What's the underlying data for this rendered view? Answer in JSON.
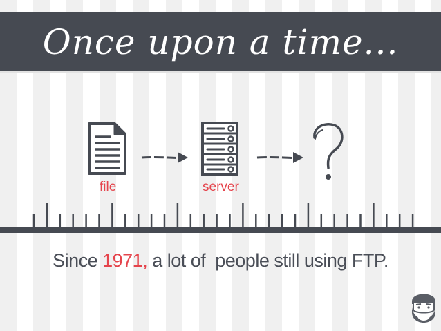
{
  "banner": {
    "title": "Once upon a time...",
    "background_color": "#464a52"
  },
  "flow": {
    "items": [
      {
        "label": "file",
        "icon": "document-icon"
      },
      {
        "label": "server",
        "icon": "server-icon"
      },
      {
        "label": "",
        "icon": "question-mark-icon"
      }
    ],
    "arrow_icon": "arrow-right-icon",
    "label_color": "#e5444c"
  },
  "timeline": {
    "line_color": "#464a52"
  },
  "caption": {
    "before": "Since ",
    "highlight": "1971,",
    "after": " a lot of  people still using FTP.",
    "highlight_color": "#e5444c",
    "text_color": "#4a4e57"
  },
  "corner": {
    "icon": "bearded-avatar-icon"
  }
}
